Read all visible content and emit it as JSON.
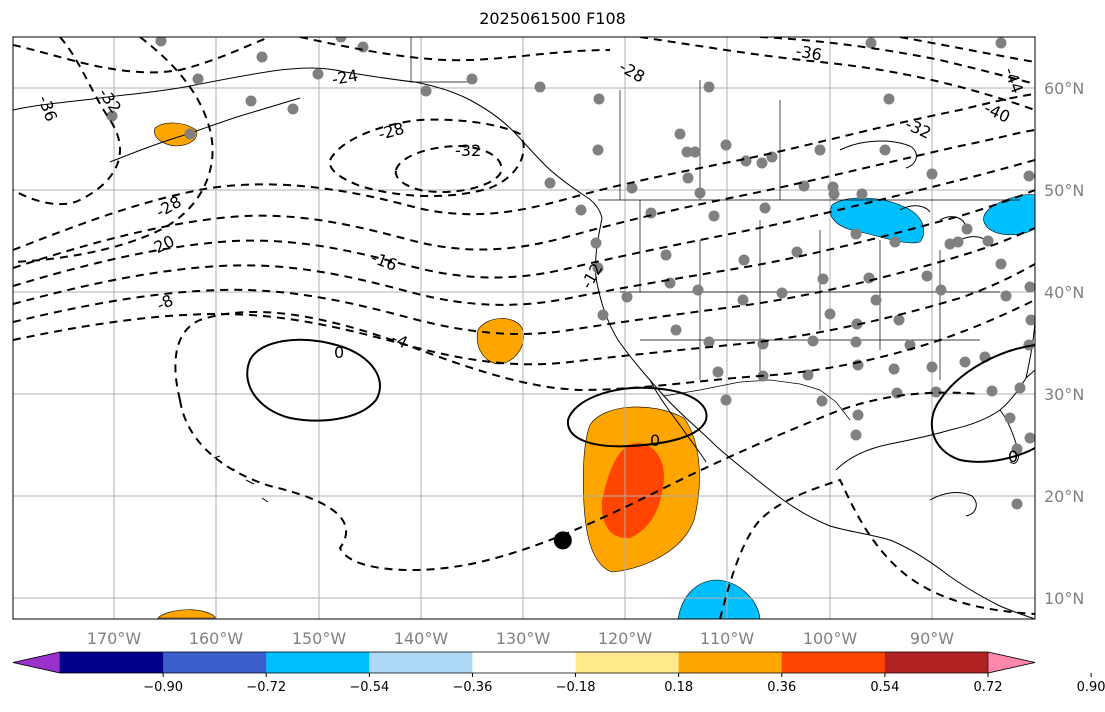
{
  "title": "2025061500 F108",
  "map": {
    "projection": "PlateCarree",
    "lon_range": [
      -180,
      -80
    ],
    "lat_range": [
      8,
      65
    ],
    "gridlines": true,
    "lon_ticks": [
      "170°W",
      "160°W",
      "150°W",
      "140°W",
      "130°W",
      "120°W",
      "110°W",
      "100°W",
      "90°W"
    ],
    "lat_ticks": [
      "10°N",
      "20°N",
      "30°N",
      "40°N",
      "50°N",
      "60°N"
    ],
    "marker": {
      "lon": -126.2,
      "lat": 15.7,
      "color": "#000000"
    }
  },
  "contour_labels": [
    "-36",
    "-32",
    "-28",
    "-24",
    "-28",
    "-32",
    "-36",
    "-40",
    "-44",
    "-32",
    "-28",
    "-20",
    "-16",
    "-8",
    "-4",
    "-12",
    "0",
    "0",
    "0"
  ],
  "colorbar": {
    "ticks": [
      "−0.90",
      "−0.72",
      "−0.54",
      "−0.36",
      "−0.18",
      "0.18",
      "0.36",
      "0.54",
      "0.72",
      "0.90"
    ],
    "colors": [
      "#9932cc",
      "#00008b",
      "#3a5fcd",
      "#00bfff",
      "#add8f6",
      "#ffffff",
      "#ffe98a",
      "#ffa500",
      "#ff4500",
      "#b22222",
      "#ff88aa"
    ],
    "extend": "both"
  },
  "legend_colors": {
    "orange": "#ffa500",
    "orangered": "#ff4500",
    "deepskyblue": "#00bfff",
    "station": "#808080"
  }
}
